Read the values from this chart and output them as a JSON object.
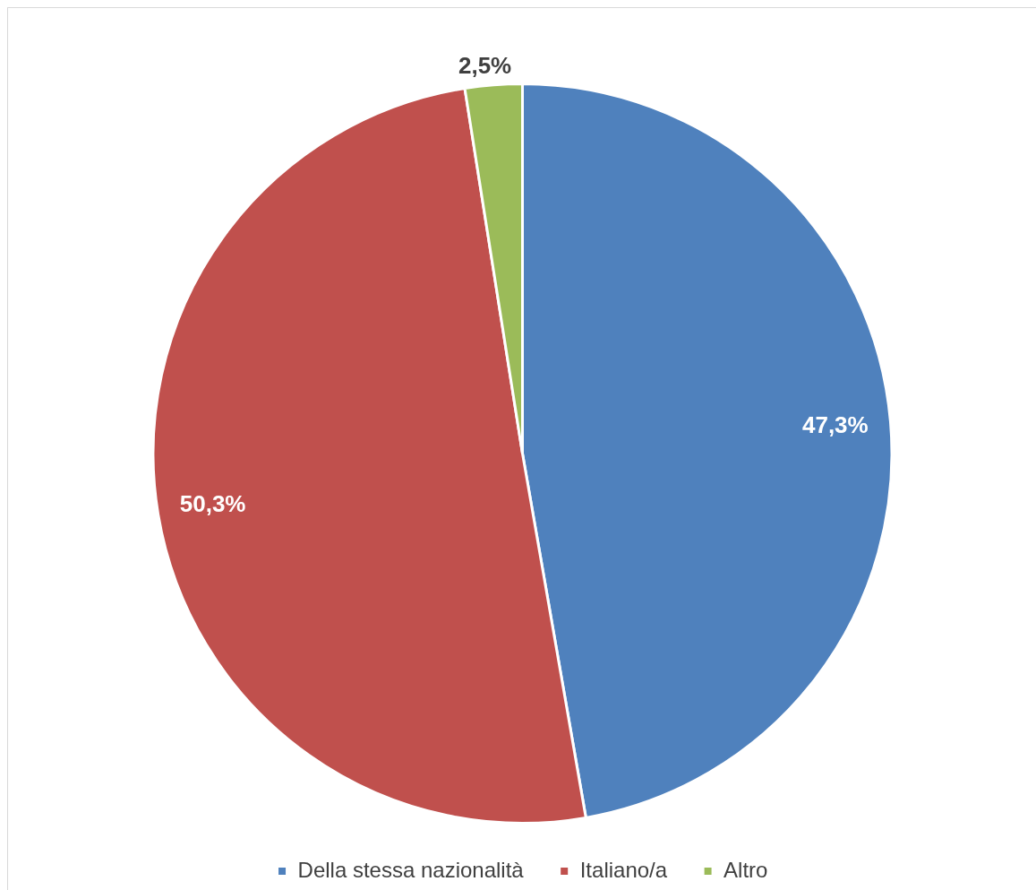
{
  "chart_data": {
    "type": "pie",
    "categories": [
      "Della stessa nazionalità",
      "Italiano/a",
      "Altro"
    ],
    "values": [
      47.3,
      50.3,
      2.5
    ],
    "colors": [
      "#4f81bd",
      "#c0504d",
      "#9bbb59"
    ],
    "value_labels": [
      "47,3%",
      "50,3%",
      "2,5%"
    ],
    "legend": "bottom"
  }
}
